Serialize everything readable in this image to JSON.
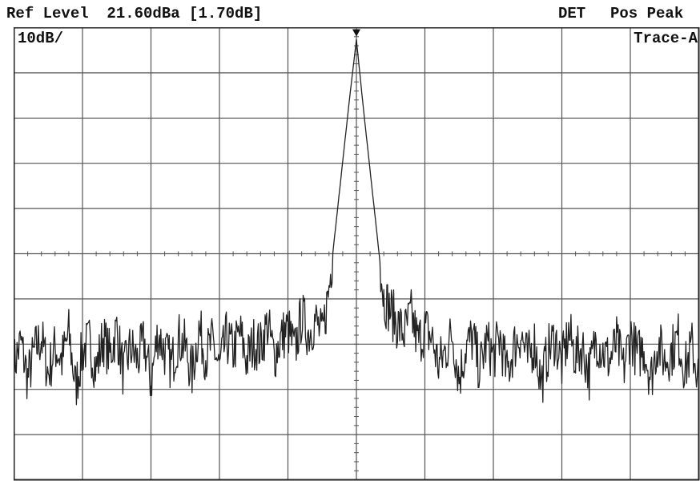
{
  "header": {
    "ref_level": "Ref Level  21.60dBa [1.70dB]",
    "det_label": "DET",
    "det_value": "Pos Peak"
  },
  "display": {
    "scale": "10dB/",
    "trace": "Trace-A"
  },
  "colors": {
    "trace": "#222222",
    "grid": "#555555",
    "background": "#ffffff"
  },
  "chart_data": {
    "type": "line",
    "title": "",
    "xlabel": "",
    "ylabel": "",
    "x_divisions": 10,
    "y_divisions": 10,
    "grid": true,
    "ylim": [
      -78.4,
      21.6
    ],
    "y_unit": "dB",
    "xlim": [
      0,
      10
    ],
    "marker": {
      "x": 5.0,
      "y": 20.0,
      "shape": "triangle-down"
    },
    "series": [
      {
        "x": [
          0.0,
          0.1,
          0.2,
          0.3,
          0.4,
          0.5,
          0.6,
          0.7,
          0.8,
          0.9,
          1.0,
          1.1,
          1.2,
          1.3,
          1.4,
          1.5,
          1.6,
          1.7,
          1.8,
          1.9,
          2.0,
          2.1,
          2.2,
          2.3,
          2.4,
          2.5,
          2.6,
          2.7,
          2.8,
          2.9,
          3.0,
          3.1,
          3.2,
          3.3,
          3.4,
          3.5,
          3.6,
          3.7,
          3.8,
          3.9,
          4.0,
          4.1,
          4.2,
          4.3,
          4.4,
          4.5,
          4.6,
          4.7,
          4.8,
          4.9,
          5.0,
          5.1,
          5.2,
          5.3,
          5.4,
          5.5,
          5.6,
          5.7,
          5.8,
          5.9,
          6.0,
          6.1,
          6.2,
          6.3,
          6.4,
          6.5,
          6.6,
          6.7,
          6.8,
          6.9,
          7.0,
          7.1,
          7.2,
          7.3,
          7.4,
          7.5,
          7.6,
          7.7,
          7.8,
          7.9,
          8.0,
          8.1,
          8.2,
          8.3,
          8.4,
          8.5,
          8.6,
          8.7,
          8.8,
          8.9,
          9.0,
          9.1,
          9.2,
          9.3,
          9.4,
          9.5,
          9.6,
          9.7,
          9.8,
          9.9,
          10.0
        ],
        "y": [
          -53,
          -48,
          -56,
          -50,
          -47,
          -55,
          -49,
          -52,
          -46,
          -58,
          -50,
          -48,
          -54,
          -47,
          -51,
          -45,
          -55,
          -49,
          -52,
          -48,
          -57,
          -46,
          -50,
          -53,
          -47,
          -49,
          -55,
          -45,
          -51,
          -48,
          -54,
          -47,
          -50,
          -46,
          -52,
          -48,
          -49,
          -44,
          -51,
          -47,
          -45,
          -50,
          -42,
          -46,
          -43,
          -47,
          -36,
          -22,
          -8,
          6,
          19,
          4,
          -10,
          -24,
          -38,
          -41,
          -44,
          -46,
          -42,
          -48,
          -45,
          -47,
          -53,
          -50,
          -46,
          -56,
          -49,
          -47,
          -54,
          -48,
          -51,
          -47,
          -55,
          -49,
          -46,
          -52,
          -48,
          -57,
          -50,
          -47,
          -53,
          -46,
          -51,
          -49,
          -55,
          -47,
          -50,
          -52,
          -48,
          -54,
          -46,
          -51,
          -49,
          -56,
          -48,
          -52,
          -50,
          -47,
          -54,
          -49,
          -56
        ]
      }
    ]
  }
}
